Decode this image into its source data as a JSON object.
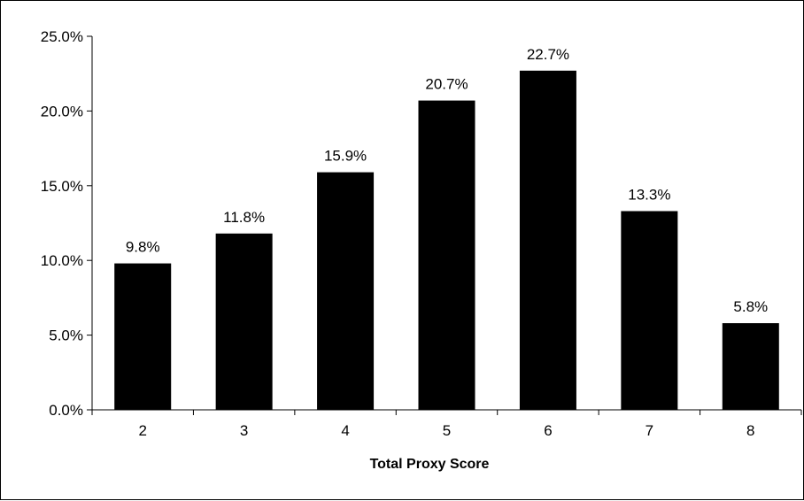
{
  "chart_data": {
    "type": "bar",
    "categories": [
      "2",
      "3",
      "4",
      "5",
      "6",
      "7",
      "8"
    ],
    "values": [
      9.8,
      11.8,
      15.9,
      20.7,
      22.7,
      13.3,
      5.8
    ],
    "data_labels": [
      "9.8%",
      "11.8%",
      "15.9%",
      "20.7%",
      "22.7%",
      "13.3%",
      "5.8%"
    ],
    "title": "",
    "xlabel": "Total Proxy Score",
    "ylabel": "",
    "ylim": [
      0,
      25
    ],
    "yticks": [
      0,
      5,
      10,
      15,
      20,
      25
    ],
    "ytick_labels": [
      "0.0%",
      "5.0%",
      "10.0%",
      "15.0%",
      "20.0%",
      "25.0%"
    ],
    "grid": false,
    "legend": "none",
    "bar_color": "#000000"
  }
}
